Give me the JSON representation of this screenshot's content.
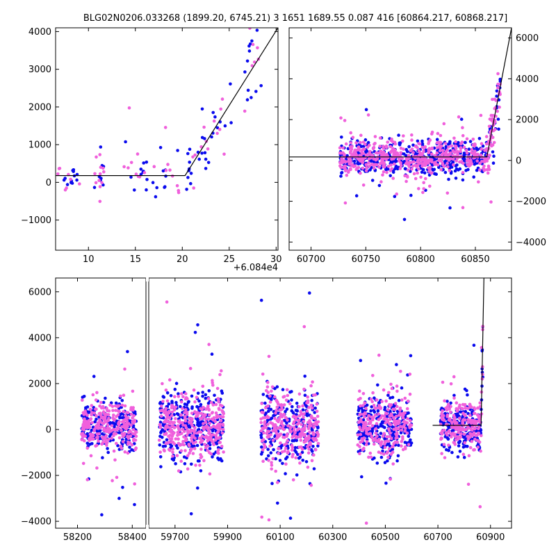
{
  "title": "BLG02N0206.033268 (1899.20, 6745.21)   3 1651 1689.55 0.087 416 [60864.217, 60868.217]",
  "colors": {
    "series_a": "#0a0aee",
    "series_b": "#f060dc",
    "fit": "#000000"
  },
  "chart_data": [
    {
      "id": "zoom",
      "type": "scatter",
      "xlim": [
        6.5,
        30.2
      ],
      "ylim": [
        -1800,
        4100
      ],
      "xticks": [
        10,
        15,
        20,
        25,
        30
      ],
      "yticks": [
        -1000,
        0,
        1000,
        2000,
        3000,
        4000
      ],
      "x_offset_label": "+6.084e4",
      "fit_line": {
        "x": [
          6.5,
          20.3,
          30.2
        ],
        "y": [
          180,
          180,
          4100
        ]
      },
      "seasons": [
        {
          "x": [
            6.5,
            9.5
          ],
          "sd": 200
        },
        {
          "x": [
            10.5,
            12.0
          ],
          "sd": 300
        },
        {
          "x": [
            13.8,
            16.5
          ],
          "sd": 280
        },
        {
          "x": [
            16.8,
            20.5
          ],
          "sd": 380
        },
        {
          "x": [
            20.5,
            22.5
          ],
          "sd": 320,
          "rise": true
        },
        {
          "x": [
            22.5,
            25.5
          ],
          "sd": 450,
          "rise": true
        },
        {
          "x": [
            26.5,
            28.5
          ],
          "sd": 550,
          "rise": true
        }
      ]
    },
    {
      "id": "season",
      "type": "scatter",
      "xlim": [
        60680,
        60883
      ],
      "ylim": [
        -4400,
        6500
      ],
      "xticks": [
        60700,
        60750,
        60800,
        60850
      ],
      "yticks": [
        -4000,
        -2000,
        0,
        2000,
        4000,
        6000
      ],
      "yaxis_side": "right",
      "fit_line": {
        "x": [
          60680,
          60860.5,
          60883
        ],
        "y": [
          170,
          170,
          6500
        ]
      },
      "seasons": [
        {
          "x": [
            60726,
            60862
          ],
          "sd": 420
        },
        {
          "x": [
            60862,
            60873
          ],
          "sd": 600,
          "rise": true
        }
      ]
    },
    {
      "id": "full",
      "type": "scatter",
      "ylim": [
        -4300,
        6600
      ],
      "yticks": [
        -4000,
        -2000,
        0,
        2000,
        4000,
        6000
      ],
      "xticks": [
        58200,
        58400,
        59700,
        59900,
        60100,
        60300,
        60500,
        60700,
        60900
      ],
      "segments": [
        {
          "xlim": [
            58120,
            58450
          ]
        },
        {
          "xlim": [
            59600,
            60980
          ]
        }
      ],
      "fit_line": {
        "x": [
          60680,
          60864.2,
          60875
        ],
        "y": [
          180,
          180,
          6600
        ]
      },
      "seasons": [
        {
          "x": [
            58215,
            58415
          ],
          "sd": 550
        },
        {
          "x": [
            59640,
            59885
          ],
          "sd": 700
        },
        {
          "x": [
            60025,
            60245
          ],
          "sd": 750
        },
        {
          "x": [
            60395,
            60600
          ],
          "sd": 650
        },
        {
          "x": [
            60710,
            60862
          ],
          "sd": 500
        },
        {
          "x": [
            60862,
            60871
          ],
          "sd": 700,
          "rise": true
        }
      ]
    }
  ]
}
